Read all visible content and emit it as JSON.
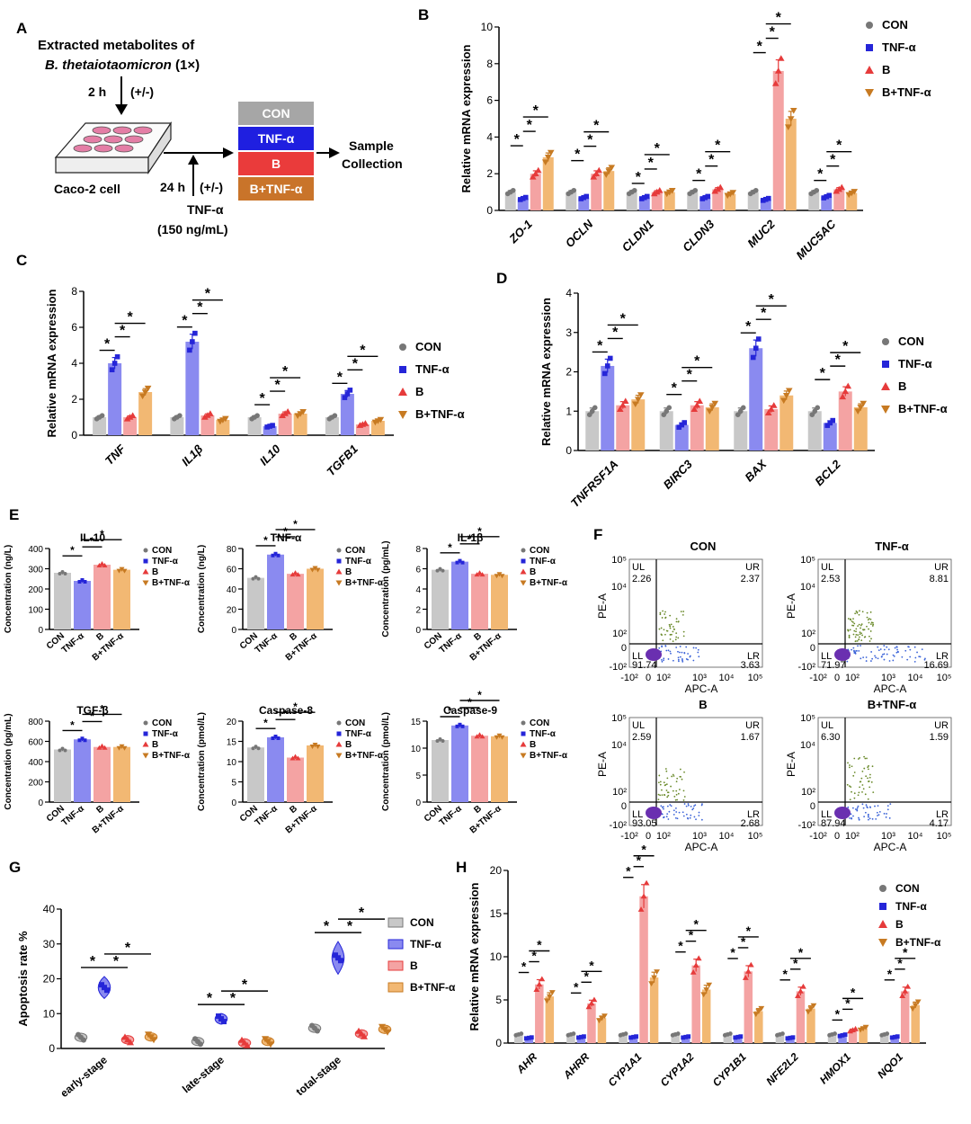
{
  "groups": [
    "CON",
    "TNF-α",
    "B",
    "B+TNF-α"
  ],
  "colors": {
    "CON": "#c8c8c8",
    "TNF-α": "#8a8af0",
    "B": "#f4a3a3",
    "B+TNF-α": "#f2b873",
    "CON_d": "#777777",
    "TNF-α_d": "#2525d8",
    "B_d": "#e63b3b",
    "B+TNF-α_d": "#c77a22"
  },
  "panel_labels": {
    "a": "A",
    "b": "B",
    "c": "C",
    "d": "D",
    "e": "E",
    "f": "F",
    "g": "G",
    "h": "H"
  },
  "star": "*",
  "schematic": {
    "line1": "Extracted metabolites of",
    "line2": "B. thetaiotaomicron",
    "line2b": " (1×)",
    "step1": "2 h",
    "pm1": "(+/-)",
    "step2": "24 h",
    "pm2": "(+/-)",
    "cell": "Caco-2 cell",
    "tnf": "TNF-α",
    "dose": "(150 ng/mL)",
    "sample1": "Sample",
    "sample2": "Collection"
  },
  "chart_data": [
    {
      "id": "B",
      "type": "bar",
      "ylabel": "Relative mRNA expression",
      "ylim": [
        0,
        10
      ],
      "yticks": [
        0,
        2,
        4,
        6,
        8,
        10
      ],
      "categories": [
        "ZO-1",
        "OCLN",
        "CLDN1",
        "CLDN3",
        "MUC2",
        "MUC5AC"
      ],
      "series": [
        {
          "name": "CON",
          "values": [
            1.0,
            1.0,
            1.0,
            1.0,
            1.0,
            1.0
          ]
        },
        {
          "name": "TNF-α",
          "values": [
            0.65,
            0.7,
            0.7,
            0.7,
            0.6,
            0.75
          ]
        },
        {
          "name": "B",
          "values": [
            2.0,
            2.0,
            1.0,
            1.15,
            7.6,
            1.15
          ]
        },
        {
          "name": "B+TNF-α",
          "values": [
            2.9,
            2.15,
            1.0,
            0.9,
            5.0,
            0.95
          ]
        }
      ]
    },
    {
      "id": "C",
      "type": "bar",
      "ylabel": "Relative mRNA expression",
      "ylim": [
        0,
        8
      ],
      "yticks": [
        0,
        2,
        4,
        6,
        8
      ],
      "categories": [
        "TNF",
        "IL1β",
        "IL10",
        "TGFB1"
      ],
      "series": [
        {
          "name": "CON",
          "values": [
            1.0,
            1.0,
            1.0,
            1.0
          ]
        },
        {
          "name": "TNF-α",
          "values": [
            4.0,
            5.2,
            0.5,
            2.3
          ]
        },
        {
          "name": "B",
          "values": [
            1.0,
            1.1,
            1.2,
            0.6
          ]
        },
        {
          "name": "B+TNF-α",
          "values": [
            2.4,
            0.85,
            1.2,
            0.8
          ]
        }
      ]
    },
    {
      "id": "D",
      "type": "bar",
      "ylabel": "Relative mRNA expression",
      "ylim": [
        0,
        4
      ],
      "yticks": [
        0,
        1,
        2,
        3,
        4
      ],
      "categories": [
        "TNFRSF1A",
        "BIRC3",
        "BAX",
        "BCL2"
      ],
      "series": [
        {
          "name": "CON",
          "values": [
            1.0,
            1.0,
            1.0,
            1.0
          ]
        },
        {
          "name": "TNF-α",
          "values": [
            2.15,
            0.65,
            2.6,
            0.7
          ]
        },
        {
          "name": "B",
          "values": [
            1.15,
            1.15,
            1.05,
            1.5
          ]
        },
        {
          "name": "B+TNF-α",
          "values": [
            1.3,
            1.1,
            1.4,
            1.1
          ]
        }
      ]
    },
    {
      "id": "E1",
      "type": "bar",
      "title": "IL-10",
      "ylabel": "Concentration (ng/L)",
      "ylim": [
        0,
        400
      ],
      "yticks": [
        0,
        100,
        200,
        300,
        400
      ],
      "categories": [
        "CON",
        "TNF-α",
        "B",
        "B+TNF-α"
      ],
      "values": [
        280,
        240,
        320,
        295
      ]
    },
    {
      "id": "E2",
      "type": "bar",
      "title": "TNF-α",
      "ylabel": "Concentration (ng/L)",
      "ylim": [
        0,
        80
      ],
      "yticks": [
        0,
        20,
        40,
        60,
        80
      ],
      "categories": [
        "CON",
        "TNF-α",
        "B",
        "B+TNF-α"
      ],
      "values": [
        51,
        74,
        55,
        60
      ]
    },
    {
      "id": "E3",
      "type": "bar",
      "title": "IL-1β",
      "ylabel": "Concentration (pg/mL)",
      "ylim": [
        0,
        8
      ],
      "yticks": [
        0,
        2,
        4,
        6,
        8
      ],
      "categories": [
        "CON",
        "TNF-α",
        "B",
        "B+TNF-α"
      ],
      "values": [
        5.9,
        6.7,
        5.5,
        5.4
      ]
    },
    {
      "id": "E4",
      "type": "bar",
      "title": "TGF-β",
      "ylabel": "Concentration (pg/mL)",
      "ylim": [
        0,
        800
      ],
      "yticks": [
        0,
        200,
        400,
        600,
        800
      ],
      "categories": [
        "CON",
        "TNF-α",
        "B",
        "B+TNF-α"
      ],
      "values": [
        520,
        620,
        545,
        545
      ]
    },
    {
      "id": "E5",
      "type": "bar",
      "title": "Caspase-8",
      "ylabel": "Concentration (pmol/L)",
      "ylim": [
        0,
        20
      ],
      "yticks": [
        0,
        5,
        10,
        15,
        20
      ],
      "categories": [
        "CON",
        "TNF-α",
        "B",
        "B+TNF-α"
      ],
      "values": [
        13.5,
        16,
        11,
        14
      ]
    },
    {
      "id": "E6",
      "type": "bar",
      "title": "Caspase-9",
      "ylabel": "Concentration (pmol/L)",
      "ylim": [
        0,
        15
      ],
      "yticks": [
        0,
        5,
        10,
        15
      ],
      "categories": [
        "CON",
        "TNF-α",
        "B",
        "B+TNF-α"
      ],
      "values": [
        11.5,
        14.2,
        12.3,
        12.2
      ]
    },
    {
      "id": "G",
      "type": "violin",
      "ylabel": "Apoptosis rate %",
      "ylim": [
        0,
        40
      ],
      "yticks": [
        0,
        10,
        20,
        30,
        40
      ],
      "categories": [
        "early-stage",
        "late-stage",
        "total-stage"
      ],
      "series": [
        {
          "name": "CON",
          "values": [
            3.2,
            2.0,
            5.8
          ]
        },
        {
          "name": "TNF-α",
          "values": [
            17.5,
            8.5,
            26
          ]
        },
        {
          "name": "B",
          "values": [
            2.5,
            1.6,
            4.2
          ]
        },
        {
          "name": "B+TNF-α",
          "values": [
            3.3,
            2.0,
            5.5
          ]
        }
      ]
    },
    {
      "id": "H",
      "type": "bar",
      "ylabel": "Relative mRNA expression",
      "ylim": [
        0,
        20
      ],
      "yticks": [
        0,
        5,
        10,
        15,
        20
      ],
      "categories": [
        "AHR",
        "AHRR",
        "CYP1A1",
        "CYP1A2",
        "CYP1B1",
        "NFE2L2",
        "HMOX1",
        "NQO1"
      ],
      "series": [
        {
          "name": "CON",
          "values": [
            1.0,
            1.0,
            1.0,
            1.0,
            1.0,
            1.0,
            1.0,
            1.0
          ]
        },
        {
          "name": "TNF-α",
          "values": [
            0.6,
            0.7,
            0.7,
            0.7,
            0.7,
            0.6,
            0.9,
            0.7
          ]
        },
        {
          "name": "B",
          "values": [
            6.8,
            4.6,
            17.0,
            9.0,
            8.3,
            6.0,
            1.5,
            6.0
          ]
        },
        {
          "name": "B+TNF-α",
          "values": [
            5.4,
            2.9,
            7.6,
            6.2,
            3.7,
            4.0,
            1.7,
            4.4
          ]
        }
      ]
    }
  ],
  "flow": {
    "title_con": "CON",
    "title_tnf": "TNF-α",
    "title_b": "B",
    "title_btnf": "B+TNF-α",
    "xlabel": "APC-A",
    "ylabel": "PE-A",
    "q": {
      "ul": "UL",
      "ur": "UR",
      "ll": "LL",
      "lr": "LR"
    },
    "yt": {
      "y5": "10⁵",
      "y4": "10⁴",
      "y2": "10²",
      "y0": "0",
      "yn": "-10²"
    },
    "xt": {
      "xn": "-10²",
      "x0": "0",
      "x2": "10²",
      "x3": "10³",
      "x4": "10⁴",
      "x5": "10⁵"
    },
    "con": {
      "ul": "2.26",
      "ur": "2.37",
      "ll": "91.74",
      "lr": "3.63"
    },
    "tnf": {
      "ul": "2.53",
      "ur": "8.81",
      "ll": "71.97",
      "lr": "16.69"
    },
    "b": {
      "ul": "2.59",
      "ur": "1.67",
      "ll": "93.05",
      "lr": "2.68"
    },
    "btnf": {
      "ul": "6.30",
      "ur": "1.59",
      "ll": "87.94",
      "lr": "4.17"
    }
  }
}
